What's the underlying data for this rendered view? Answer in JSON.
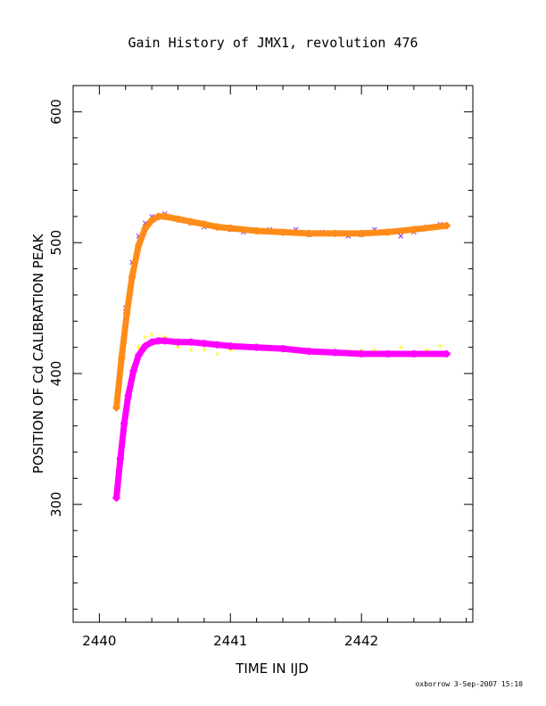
{
  "chart_data": {
    "type": "scatter",
    "title": "Gain History of JMX1, revolution 476",
    "xlabel": "TIME IN IJD",
    "ylabel": "POSITION OF Cd CALIBRATION PEAK",
    "xlim": [
      2439.8,
      2442.85
    ],
    "ylim": [
      210,
      620
    ],
    "x_ticks": [
      "2440",
      "2441",
      "2442"
    ],
    "x_tick_values": [
      2440,
      2441,
      2442
    ],
    "y_ticks": [
      "300",
      "400",
      "500",
      "600"
    ],
    "y_tick_values": [
      300,
      400,
      500,
      600
    ],
    "grid": false,
    "legend": "none",
    "footer": "oxborrow  3-Sep-2007 15:10",
    "series": [
      {
        "marker": "x",
        "color": "#8a2be2",
        "style": "scatter",
        "x": [
          2440.15,
          2440.2,
          2440.25,
          2440.3,
          2440.35,
          2440.4,
          2440.5,
          2440.6,
          2440.7,
          2440.8,
          2440.9,
          2441.0,
          2441.1,
          2441.2,
          2441.3,
          2441.4,
          2441.5,
          2441.6,
          2441.7,
          2441.8,
          2441.9,
          2442.0,
          2442.1,
          2442.2,
          2442.3,
          2442.4,
          2442.5,
          2442.6
        ],
        "y": [
          390,
          450,
          485,
          505,
          515,
          520,
          522,
          518,
          515,
          512,
          512,
          510,
          508,
          509,
          510,
          508,
          510,
          506,
          508,
          507,
          505,
          506,
          510,
          508,
          505,
          508,
          512,
          514
        ]
      },
      {
        "marker": "+",
        "color": "#ffff00",
        "style": "scatter",
        "x": [
          2440.15,
          2440.2,
          2440.25,
          2440.3,
          2440.35,
          2440.4,
          2440.5,
          2440.6,
          2440.7,
          2440.8,
          2440.9,
          2441.0,
          2441.1,
          2441.2,
          2441.3,
          2441.4,
          2441.5,
          2441.6,
          2441.7,
          2441.8,
          2441.9,
          2442.0,
          2442.1,
          2442.2,
          2442.3,
          2442.4,
          2442.5,
          2442.6
        ],
        "y": [
          325,
          380,
          405,
          420,
          428,
          430,
          428,
          420,
          418,
          418,
          415,
          418,
          422,
          420,
          418,
          420,
          418,
          418,
          415,
          418,
          417,
          418,
          418,
          416,
          420,
          415,
          418,
          421
        ]
      },
      {
        "marker": "+",
        "color": "#ff8c1a",
        "style": "fit",
        "x": [
          2440.13,
          2440.17,
          2440.21,
          2440.25,
          2440.3,
          2440.35,
          2440.4,
          2440.45,
          2440.5,
          2440.6,
          2440.7,
          2440.8,
          2440.9,
          2441.0,
          2441.2,
          2441.4,
          2441.6,
          2441.8,
          2442.0,
          2442.2,
          2442.4,
          2442.65
        ],
        "y": [
          374,
          412,
          446,
          474,
          498,
          511,
          517,
          520,
          520,
          518,
          516,
          514,
          512,
          511,
          509,
          508,
          507,
          507,
          507,
          508,
          510,
          513
        ]
      },
      {
        "marker": "+",
        "color": "#ff00ff",
        "style": "fit",
        "x": [
          2440.13,
          2440.16,
          2440.19,
          2440.22,
          2440.26,
          2440.3,
          2440.35,
          2440.4,
          2440.45,
          2440.5,
          2440.6,
          2440.7,
          2440.8,
          2440.9,
          2441.0,
          2441.2,
          2441.4,
          2441.6,
          2441.8,
          2442.0,
          2442.2,
          2442.4,
          2442.65
        ],
        "y": [
          305,
          335,
          362,
          383,
          402,
          414,
          421,
          424,
          425,
          425,
          424,
          424,
          423,
          422,
          421,
          420,
          419,
          417,
          416,
          415,
          415,
          415,
          415
        ]
      }
    ]
  }
}
